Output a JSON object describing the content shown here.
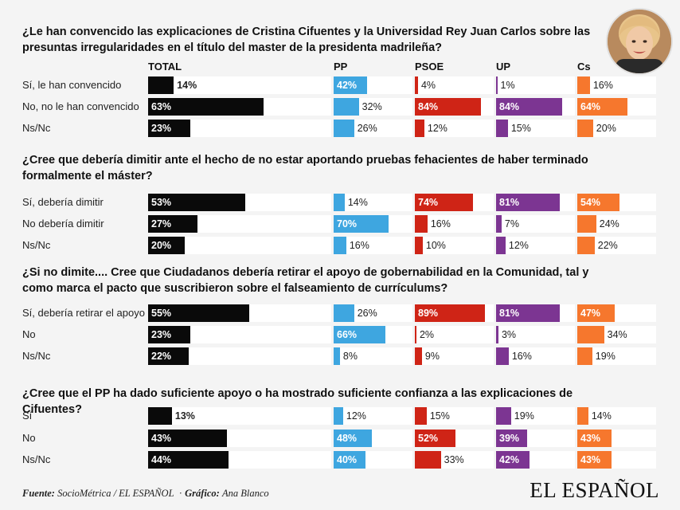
{
  "chart_data": {
    "type": "bar",
    "orientation": "horizontal",
    "columns": [
      "TOTAL",
      "PP",
      "PSOE",
      "UP",
      "Cs"
    ],
    "colors": {
      "TOTAL": "#0a0a0a",
      "PP": "#3ea6e0",
      "PSOE": "#cf2416",
      "UP": "#7c3592",
      "Cs": "#f6772d"
    },
    "xlim": [
      0,
      100
    ],
    "questions": [
      {
        "title": "¿Le han convencido las explicaciones de Cristina Cifuentes y la Universidad Rey Juan Carlos sobre las presuntas irregularidades en el título del master de la presidenta madrileña?",
        "rows": [
          {
            "label": "Sí, le han convencido",
            "values": [
              14,
              42,
              4,
              1,
              16
            ]
          },
          {
            "label": "No, no le han convencido",
            "values": [
              63,
              32,
              84,
              84,
              64
            ]
          },
          {
            "label": "Ns/Nc",
            "values": [
              23,
              26,
              12,
              15,
              20
            ]
          }
        ]
      },
      {
        "title": "¿Cree que debería dimitir ante el hecho de no estar aportando pruebas fehacientes de haber terminado formalmente el máster?",
        "rows": [
          {
            "label": "Sí, debería dimitir",
            "values": [
              53,
              14,
              74,
              81,
              54
            ]
          },
          {
            "label": "No debería dimitir",
            "values": [
              27,
              70,
              16,
              7,
              24
            ]
          },
          {
            "label": "Ns/Nc",
            "values": [
              20,
              16,
              10,
              12,
              22
            ]
          }
        ]
      },
      {
        "title": "¿Si no dimite.... Cree que Ciudadanos debería retirar el apoyo de gobernabilidad en la Comunidad, tal y como marca el pacto que suscribieron sobre el falseamiento de currículums?",
        "rows": [
          {
            "label": "Sí, debería retirar el apoyo",
            "values": [
              55,
              26,
              89,
              81,
              47
            ]
          },
          {
            "label": "No",
            "values": [
              23,
              66,
              2,
              3,
              34
            ]
          },
          {
            "label": "Ns/Nc",
            "values": [
              22,
              8,
              9,
              16,
              19
            ]
          }
        ]
      },
      {
        "title": "¿Cree que el PP ha dado suficiente apoyo o ha mostrado suficiente confianza a las explicaciones de Cifuentes?",
        "rows": [
          {
            "label": "Sí",
            "values": [
              13,
              12,
              15,
              19,
              14
            ]
          },
          {
            "label": "No",
            "values": [
              43,
              48,
              52,
              39,
              43
            ]
          },
          {
            "label": "Ns/Nc",
            "values": [
              44,
              40,
              33,
              42,
              43
            ]
          }
        ]
      }
    ]
  },
  "footer": {
    "source_label": "Fuente:",
    "source_value": "SocioMétrica / EL ESPAÑOL",
    "separator": "·",
    "graphic_label": "Gráfico:",
    "graphic_value": "Ana Blanco"
  },
  "logo": {
    "text": "EL ESPAÑOL"
  },
  "avatar": {
    "icon": "person-portrait-icon"
  }
}
